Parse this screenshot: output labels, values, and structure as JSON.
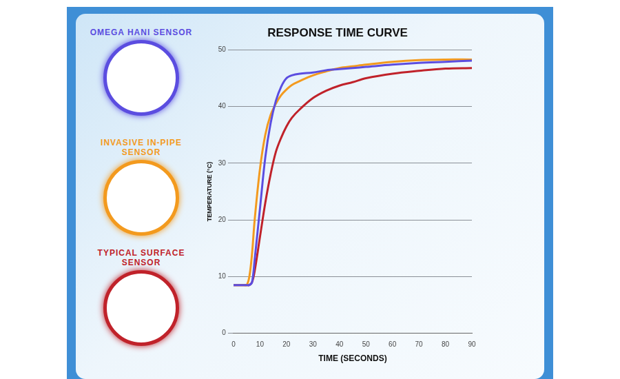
{
  "chart_data": {
    "type": "line",
    "title": "RESPONSE TIME CURVE",
    "x_label": "TIME (SECONDS)",
    "y_label": "TEMPERATURE (°C)",
    "x": [
      0,
      2,
      4,
      5,
      6,
      7,
      8,
      10,
      12,
      14,
      16,
      18,
      20,
      22,
      25,
      30,
      35,
      40,
      45,
      50,
      60,
      70,
      80,
      90
    ],
    "series": [
      {
        "name": "OMEGA HANI SENSOR",
        "color": "#5b4de0",
        "values": [
          8.5,
          8.5,
          8.5,
          8.5,
          8.5,
          9,
          13,
          22,
          31,
          37,
          41,
          43.5,
          45,
          45.5,
          45.8,
          46,
          46.4,
          46.6,
          46.8,
          47,
          47.4,
          47.7,
          47.9,
          48.1
        ]
      },
      {
        "name": "INVASIVE IN-PIPE SENSOR",
        "color": "#f39a1e",
        "values": [
          8.5,
          8.5,
          8.5,
          8.5,
          10,
          14,
          20,
          29,
          35,
          38.5,
          40.5,
          42,
          43,
          43.8,
          44.5,
          45.5,
          46.2,
          46.8,
          47.1,
          47.4,
          47.9,
          48.2,
          48.3,
          48.3
        ]
      },
      {
        "name": "TYPICAL SURFACE SENSOR",
        "color": "#c0222a",
        "values": [
          8.5,
          8.5,
          8.5,
          8.5,
          8.5,
          9,
          11,
          17,
          23,
          28,
          32,
          34.5,
          36.5,
          38,
          39.5,
          41.5,
          42.8,
          43.7,
          44.3,
          45,
          45.8,
          46.3,
          46.7,
          46.8
        ]
      }
    ],
    "xlim": [
      0,
      90
    ],
    "xticks": [
      0,
      10,
      20,
      30,
      40,
      50,
      60,
      70,
      80,
      90
    ],
    "ylim": [
      0,
      50
    ],
    "yticks": [
      0,
      10,
      20,
      30,
      40,
      50
    ],
    "grid": true,
    "legend": "left"
  }
}
